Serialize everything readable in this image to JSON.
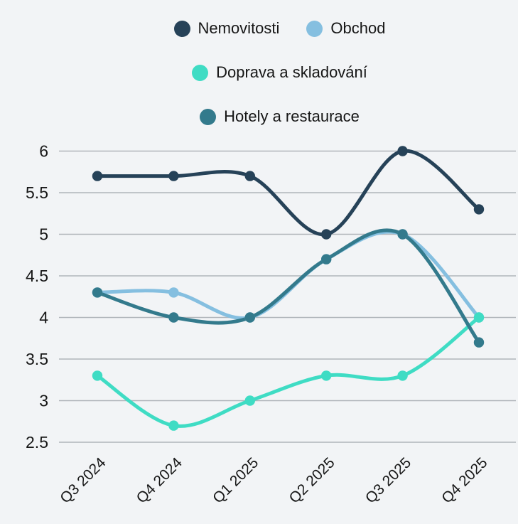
{
  "styles": {
    "background": "#f2f4f6",
    "gridline_color": "#b0b5ba",
    "text_color": "#161616"
  },
  "chart_data": {
    "type": "line",
    "title": "",
    "xlabel": "",
    "ylabel": "",
    "categories": [
      "Q3 2024",
      "Q4 2024",
      "Q1 2025",
      "Q2 2025",
      "Q3 2025",
      "Q4 2025"
    ],
    "series": [
      {
        "name": "Nemovitosti",
        "color": "#264258",
        "values": [
          5.7,
          5.7,
          5.7,
          5.0,
          6.0,
          5.3
        ]
      },
      {
        "name": "Obchod",
        "color": "#85bfe0",
        "values": [
          4.3,
          4.3,
          4.0,
          4.7,
          5.0,
          4.0
        ]
      },
      {
        "name": "Doprava a skladování",
        "color": "#3fdcc4",
        "values": [
          3.3,
          2.7,
          3.0,
          3.3,
          3.3,
          4.0
        ]
      },
      {
        "name": "Hotely a restaurace",
        "color": "#337a8c",
        "values": [
          4.3,
          4.0,
          4.0,
          4.7,
          5.0,
          3.7
        ]
      }
    ],
    "ylim": [
      2.5,
      6.0
    ],
    "yticks": [
      6.0,
      5.5,
      5.0,
      4.5,
      4.0,
      3.5,
      3.0,
      2.5
    ],
    "ytick_format_decimals": 1,
    "grid": true,
    "curve": "smooth-spline",
    "legend_position": "top",
    "legend_rows": [
      [
        "Nemovitosti",
        "Obchod"
      ],
      [
        "Doprava a skladování"
      ],
      [
        "Hotely a restaurace"
      ]
    ]
  }
}
